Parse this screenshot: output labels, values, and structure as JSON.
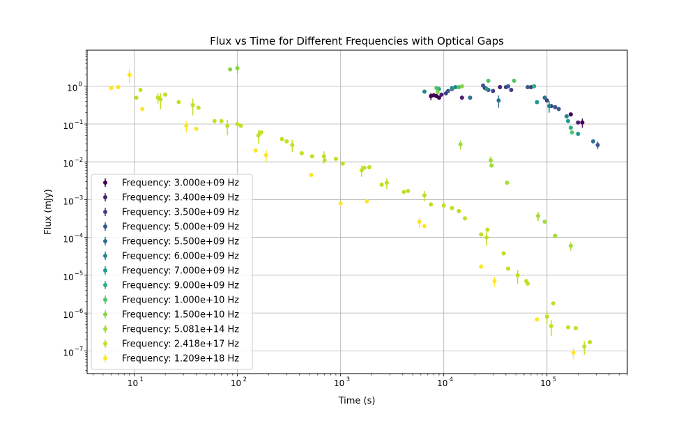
{
  "chart_data": {
    "type": "scatter",
    "title": "Flux vs Time for Different Frequencies with Optical Gaps",
    "xlabel": "Time (s)",
    "ylabel": "Flux (mJy)",
    "xscale": "log",
    "yscale": "log",
    "xlim": [
      3.5,
      600000
    ],
    "ylim": [
      2.5e-08,
      9
    ],
    "grid": true,
    "legend_position": "lower-left",
    "x_ticks": [
      {
        "value": 10,
        "label": "10"
      },
      {
        "value": 100,
        "label": "10"
      },
      {
        "value": 1000,
        "label": "10"
      },
      {
        "value": 10000,
        "label": "10"
      },
      {
        "value": 100000,
        "label": "10"
      }
    ],
    "x_tick_exponents": [
      "1",
      "2",
      "3",
      "4",
      "5"
    ],
    "y_ticks": [
      {
        "value": 1e-07,
        "base": "10",
        "exp": "−7"
      },
      {
        "value": 1e-06,
        "base": "10",
        "exp": "−6"
      },
      {
        "value": 1e-05,
        "base": "10",
        "exp": "−5"
      },
      {
        "value": 0.0001,
        "base": "10",
        "exp": "−4"
      },
      {
        "value": 0.001,
        "base": "10",
        "exp": "−3"
      },
      {
        "value": 0.01,
        "base": "10",
        "exp": "−2"
      },
      {
        "value": 0.1,
        "base": "10",
        "exp": "−1"
      },
      {
        "value": 1,
        "base": "10",
        "exp": "0"
      }
    ],
    "series": [
      {
        "name": "Frequency: 3.000e+09 Hz",
        "color": "#440154",
        "points": [
          {
            "x": 7500,
            "y": 0.55,
            "err": 0.12
          },
          {
            "x": 8000,
            "y": 0.58
          },
          {
            "x": 8500,
            "y": 0.55
          },
          {
            "x": 9000,
            "y": 0.5
          },
          {
            "x": 170000,
            "y": 0.18
          },
          {
            "x": 220000,
            "y": 0.11,
            "err": 0.03
          }
        ]
      },
      {
        "name": "Frequency: 3.400e+09 Hz",
        "color": "#482173",
        "points": [
          {
            "x": 9500,
            "y": 0.6
          },
          {
            "x": 15000,
            "y": 0.5
          },
          {
            "x": 35000,
            "y": 0.95
          },
          {
            "x": 200000,
            "y": 0.11
          }
        ]
      },
      {
        "name": "Frequency: 3.500e+09 Hz",
        "color": "#433e85",
        "points": [
          {
            "x": 10500,
            "y": 0.65
          },
          {
            "x": 12000,
            "y": 0.85
          },
          {
            "x": 25000,
            "y": 0.9
          },
          {
            "x": 30000,
            "y": 0.75
          },
          {
            "x": 40000,
            "y": 0.95
          },
          {
            "x": 45000,
            "y": 0.8
          },
          {
            "x": 70000,
            "y": 0.95
          },
          {
            "x": 100000,
            "y": 0.42
          },
          {
            "x": 110000,
            "y": 0.3
          }
        ]
      },
      {
        "name": "Frequency: 5.000e+09 Hz",
        "color": "#38588c",
        "points": [
          {
            "x": 11000,
            "y": 0.75
          },
          {
            "x": 24000,
            "y": 1.05
          },
          {
            "x": 27000,
            "y": 0.8
          },
          {
            "x": 42000,
            "y": 1.0
          },
          {
            "x": 65000,
            "y": 0.95
          },
          {
            "x": 120000,
            "y": 0.28
          },
          {
            "x": 130000,
            "y": 0.25
          },
          {
            "x": 310000,
            "y": 0.028,
            "err": 0.006
          }
        ]
      },
      {
        "name": "Frequency: 5.500e+09 Hz",
        "color": "#2d708e",
        "points": [
          {
            "x": 18000,
            "y": 0.5
          },
          {
            "x": 34000,
            "y": 0.42,
            "err": 0.15
          },
          {
            "x": 95000,
            "y": 0.5
          },
          {
            "x": 280000,
            "y": 0.035
          }
        ]
      },
      {
        "name": "Frequency: 6.000e+09 Hz",
        "color": "#25858e",
        "points": [
          {
            "x": 6500,
            "y": 0.72
          },
          {
            "x": 13000,
            "y": 0.95
          },
          {
            "x": 105000,
            "y": 0.3,
            "err": 0.1
          },
          {
            "x": 155000,
            "y": 0.16
          }
        ]
      },
      {
        "name": "Frequency: 7.000e+09 Hz",
        "color": "#1e9b8a",
        "points": [
          {
            "x": 12000,
            "y": 0.9
          },
          {
            "x": 26000,
            "y": 0.85
          },
          {
            "x": 80000,
            "y": 0.38
          },
          {
            "x": 160000,
            "y": 0.12
          },
          {
            "x": 200000,
            "y": 0.055
          }
        ]
      },
      {
        "name": "Frequency: 9.000e+09 Hz",
        "color": "#2ab07f",
        "points": [
          {
            "x": 9000,
            "y": 0.85
          },
          {
            "x": 75000,
            "y": 1.0
          },
          {
            "x": 170000,
            "y": 0.08
          }
        ]
      },
      {
        "name": "Frequency: 1.000e+10 Hz",
        "color": "#52c569",
        "points": [
          {
            "x": 8500,
            "y": 0.9
          },
          {
            "x": 14000,
            "y": 0.95
          },
          {
            "x": 27000,
            "y": 1.4
          },
          {
            "x": 48000,
            "y": 1.4
          },
          {
            "x": 175000,
            "y": 0.06
          }
        ]
      },
      {
        "name": "Frequency: 1.500e+10 Hz",
        "color": "#86d549",
        "points": [
          {
            "x": 85,
            "y": 2.8
          },
          {
            "x": 100,
            "y": 3.0,
            "err": 0.8
          },
          {
            "x": 8700,
            "y": 0.7
          },
          {
            "x": 15000,
            "y": 1.0
          }
        ]
      },
      {
        "name": "Frequency: 5.081e+14 Hz",
        "color": "#a5db36",
        "points": [
          {
            "x": 14500,
            "y": 0.029,
            "err": 0.008
          },
          {
            "x": 28500,
            "y": 0.011,
            "err": 0.003
          },
          {
            "x": 29000,
            "y": 0.008
          },
          {
            "x": 41000,
            "y": 0.0028
          },
          {
            "x": 82000,
            "y": 0.00037,
            "err": 0.0001
          },
          {
            "x": 95000,
            "y": 0.00026
          },
          {
            "x": 120000,
            "y": 0.00011
          },
          {
            "x": 170000,
            "y": 6e-05,
            "err": 1.5e-05
          }
        ]
      },
      {
        "name": "Frequency: 2.418e+17 Hz",
        "color": "#c2df23",
        "points": [
          {
            "x": 10.5,
            "y": 0.5
          },
          {
            "x": 11.5,
            "y": 0.8
          },
          {
            "x": 17,
            "y": 0.5,
            "err": 0.15
          },
          {
            "x": 18,
            "y": 0.45,
            "err": 0.2
          },
          {
            "x": 20,
            "y": 0.6
          },
          {
            "x": 27,
            "y": 0.38
          },
          {
            "x": 37,
            "y": 0.32,
            "err": 0.15
          },
          {
            "x": 42,
            "y": 0.27
          },
          {
            "x": 60,
            "y": 0.12
          },
          {
            "x": 70,
            "y": 0.12
          },
          {
            "x": 80,
            "y": 0.09,
            "err": 0.04
          },
          {
            "x": 100,
            "y": 0.1
          },
          {
            "x": 108,
            "y": 0.09
          },
          {
            "x": 160,
            "y": 0.05,
            "err": 0.02
          },
          {
            "x": 170,
            "y": 0.06
          },
          {
            "x": 270,
            "y": 0.04
          },
          {
            "x": 300,
            "y": 0.035
          },
          {
            "x": 340,
            "y": 0.028,
            "err": 0.01
          },
          {
            "x": 420,
            "y": 0.017
          },
          {
            "x": 530,
            "y": 0.014
          },
          {
            "x": 690,
            "y": 0.014,
            "err": 0.005
          },
          {
            "x": 700,
            "y": 0.011
          },
          {
            "x": 900,
            "y": 0.012
          },
          {
            "x": 1050,
            "y": 0.009
          },
          {
            "x": 1600,
            "y": 0.006,
            "err": 0.002
          },
          {
            "x": 1700,
            "y": 0.007
          },
          {
            "x": 1900,
            "y": 0.0072
          },
          {
            "x": 2500,
            "y": 0.0025
          },
          {
            "x": 2800,
            "y": 0.0028,
            "err": 0.0009
          },
          {
            "x": 4100,
            "y": 0.0016
          },
          {
            "x": 4500,
            "y": 0.0017
          },
          {
            "x": 6500,
            "y": 0.0013,
            "err": 0.0004
          },
          {
            "x": 7500,
            "y": 0.00075
          },
          {
            "x": 10000,
            "y": 0.0007
          },
          {
            "x": 12000,
            "y": 0.0006
          },
          {
            "x": 14000,
            "y": 0.0005
          },
          {
            "x": 16000,
            "y": 0.00032
          },
          {
            "x": 23000,
            "y": 0.00012
          },
          {
            "x": 26000,
            "y": 0.0001,
            "err": 4e-05
          },
          {
            "x": 26500,
            "y": 0.00016
          },
          {
            "x": 38000,
            "y": 3.8e-05
          },
          {
            "x": 42000,
            "y": 1.5e-05
          },
          {
            "x": 52000,
            "y": 1e-05,
            "err": 4e-06
          },
          {
            "x": 63000,
            "y": 7e-06
          },
          {
            "x": 65000,
            "y": 6e-06
          },
          {
            "x": 100000,
            "y": 8e-07,
            "err": 3e-07
          },
          {
            "x": 110000,
            "y": 4.5e-07,
            "err": 2e-07
          },
          {
            "x": 115000,
            "y": 1.8e-06
          },
          {
            "x": 160000,
            "y": 4.2e-07
          },
          {
            "x": 190000,
            "y": 4e-07
          },
          {
            "x": 230000,
            "y": 1.3e-07,
            "err": 5e-08
          },
          {
            "x": 260000,
            "y": 1.7e-07
          }
        ]
      },
      {
        "name": "Frequency: 1.209e+18 Hz",
        "color": "#fde725",
        "points": [
          {
            "x": 6,
            "y": 0.9
          },
          {
            "x": 7,
            "y": 0.95
          },
          {
            "x": 9,
            "y": 2.0,
            "err": 0.8
          },
          {
            "x": 12,
            "y": 0.25
          },
          {
            "x": 32,
            "y": 0.09,
            "err": 0.03
          },
          {
            "x": 40,
            "y": 0.075
          },
          {
            "x": 150,
            "y": 0.02
          },
          {
            "x": 190,
            "y": 0.015,
            "err": 0.005
          },
          {
            "x": 520,
            "y": 0.0045
          },
          {
            "x": 1000,
            "y": 0.0008
          },
          {
            "x": 1800,
            "y": 0.0009
          },
          {
            "x": 5800,
            "y": 0.00026,
            "err": 8e-05
          },
          {
            "x": 6500,
            "y": 0.0002
          },
          {
            "x": 23000,
            "y": 1.7e-05
          },
          {
            "x": 31000,
            "y": 7e-06,
            "err": 2e-06
          },
          {
            "x": 80000,
            "y": 6.8e-07
          },
          {
            "x": 180000,
            "y": 9e-08,
            "err": 3e-08
          }
        ]
      }
    ]
  }
}
